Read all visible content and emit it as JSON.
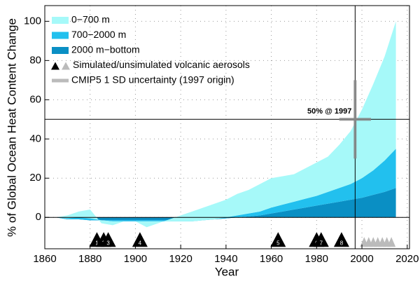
{
  "chart_data": {
    "type": "stacked_area",
    "xlabel": "Year",
    "ylabel": "% of Global Ocean Heat Content Change",
    "x": [
      1865,
      1870,
      1875,
      1880,
      1885,
      1890,
      1895,
      1900,
      1905,
      1910,
      1915,
      1920,
      1925,
      1930,
      1935,
      1940,
      1945,
      1950,
      1955,
      1960,
      1965,
      1970,
      1975,
      1980,
      1985,
      1990,
      1995,
      2000,
      2005,
      2010,
      2015
    ],
    "series": [
      {
        "name": "2000 m−bottom",
        "color": "#0a8fc4",
        "values": [
          0,
          -1,
          -1,
          -1.5,
          -1.5,
          -1.5,
          -1.5,
          -1.5,
          -1.5,
          -1.5,
          -1.5,
          -1.5,
          -1.5,
          -1,
          -1,
          -0.5,
          0,
          0.5,
          1,
          2,
          3,
          4,
          5,
          6,
          7,
          8,
          9,
          10,
          11.5,
          13,
          15
        ]
      },
      {
        "name": "700−2000 m",
        "color": "#22c0ee",
        "values": [
          0,
          0.5,
          1,
          1,
          0,
          -0.5,
          -0.5,
          -0.5,
          -0.5,
          -0.5,
          -0.5,
          -0.5,
          -0.5,
          -0.5,
          0,
          0.5,
          1,
          1.5,
          2,
          3,
          3.5,
          4,
          4.5,
          5,
          6,
          7,
          8,
          10,
          12.5,
          16,
          20
        ]
      },
      {
        "name": "0−700 m",
        "color": "#a6f9f9",
        "values": [
          0,
          1.5,
          3,
          4.5,
          -1.5,
          -2,
          0,
          0,
          -3,
          -1,
          1,
          3,
          5,
          6.5,
          8,
          9,
          11,
          12,
          14,
          15,
          14.5,
          14,
          15.5,
          17,
          18,
          22,
          27,
          35,
          44,
          53,
          65
        ]
      }
    ],
    "legend_order": [
      2,
      1,
      0
    ],
    "volcano_legend": "Simulated/unsimulated volcanic aerosols",
    "uncertainty_legend": "CMIP5 1 SD uncertainty (1997 origin)",
    "volcanoes": [
      {
        "year": 1883,
        "label": "1"
      },
      {
        "year": 1886,
        "label": "2"
      },
      {
        "year": 1888,
        "label": "3"
      },
      {
        "year": 1902,
        "label": "4"
      },
      {
        "year": 1963,
        "label": "5"
      },
      {
        "year": 1980,
        "label": "6"
      },
      {
        "year": 1982,
        "label": "7"
      },
      {
        "year": 1991,
        "label": "8"
      }
    ],
    "unsimulated_volcanoes": [
      2001,
      2003,
      2005,
      2007,
      2009,
      2011,
      2013
    ],
    "reference": {
      "year": 1997,
      "percent": 50,
      "label": "50% @ 1997",
      "x_err": 7,
      "y_err": 20
    },
    "xlim": [
      1860,
      2021
    ],
    "xticks": [
      1860,
      1880,
      1900,
      1920,
      1940,
      1960,
      1980,
      2000,
      2020
    ],
    "ylim": [
      -16,
      108
    ],
    "yticks": [
      0,
      20,
      40,
      60,
      80,
      100
    ],
    "grid": true
  }
}
